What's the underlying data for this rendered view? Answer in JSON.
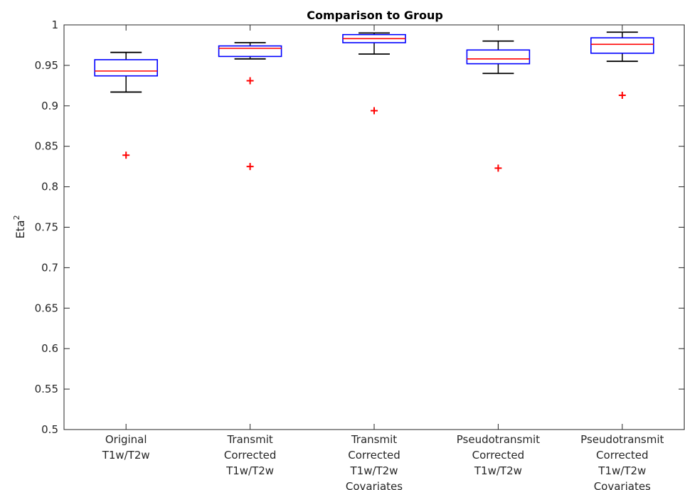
{
  "chart_data": {
    "type": "box",
    "title": "Comparison to Group",
    "ylabel": "Eta",
    "ylabel_superscript": "2",
    "xlabel": "",
    "ylim": [
      0.5,
      1.0
    ],
    "yticks": [
      "0.5",
      "0.55",
      "0.6",
      "0.65",
      "0.7",
      "0.75",
      "0.8",
      "0.85",
      "0.9",
      "0.95",
      "1"
    ],
    "grid": false,
    "colors": {
      "box": "#0000ff",
      "median": "#ff0000",
      "whisker": "#000000",
      "outlier": "#ff0000",
      "axis": "#262626"
    },
    "categories": [
      {
        "lines": [
          "Original",
          "T1w/T2w"
        ],
        "q1": 0.937,
        "median": 0.943,
        "q3": 0.957,
        "whisker_low": 0.917,
        "whisker_high": 0.966,
        "outliers": [
          0.839
        ]
      },
      {
        "lines": [
          "Transmit",
          "Corrected",
          "T1w/T2w"
        ],
        "q1": 0.961,
        "median": 0.971,
        "q3": 0.974,
        "whisker_low": 0.958,
        "whisker_high": 0.978,
        "outliers": [
          0.931,
          0.825
        ]
      },
      {
        "lines": [
          "Transmit",
          "Corrected",
          "T1w/T2w",
          "Covariates"
        ],
        "q1": 0.978,
        "median": 0.983,
        "q3": 0.988,
        "whisker_low": 0.964,
        "whisker_high": 0.99,
        "outliers": [
          0.894
        ]
      },
      {
        "lines": [
          "Pseudotransmit",
          "Corrected",
          "T1w/T2w"
        ],
        "q1": 0.952,
        "median": 0.958,
        "q3": 0.969,
        "whisker_low": 0.94,
        "whisker_high": 0.98,
        "outliers": [
          0.823
        ]
      },
      {
        "lines": [
          "Pseudotransmit",
          "Corrected",
          "T1w/T2w",
          "Covariates"
        ],
        "q1": 0.965,
        "median": 0.976,
        "q3": 0.984,
        "whisker_low": 0.955,
        "whisker_high": 0.991,
        "outliers": [
          0.913
        ]
      }
    ]
  }
}
